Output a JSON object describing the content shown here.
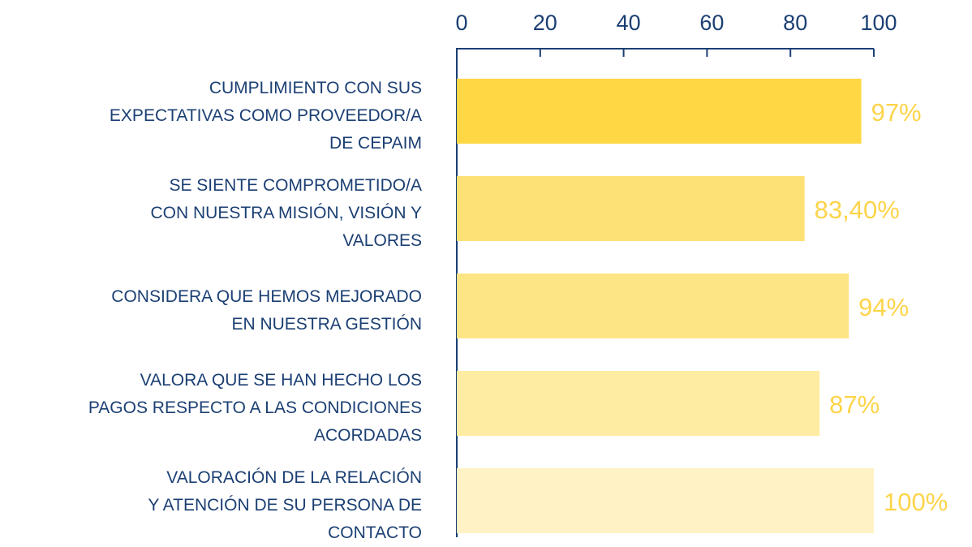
{
  "chart_data": {
    "type": "bar",
    "orientation": "horizontal",
    "categories": [
      "CUMPLIMIENTO CON SUS\nEXPECTATIVAS COMO PROVEEDOR/A\nDE CEPAIM",
      "SE SIENTE COMPROMETIDO/A\nCON NUESTRA MISIÓN, VISIÓN Y\nVALORES",
      "CONSIDERA QUE HEMOS MEJORADO\nEN NUESTRA GESTIÓN",
      "VALORA QUE SE HAN HECHO LOS\nPAGOS RESPECTO A LAS CONDICIONES\nACORDADAS",
      "VALORACIÓN DE LA RELACIÓN\nY ATENCIÓN DE SU PERSONA DE\nCONTACTO"
    ],
    "values": [
      97,
      83.4,
      94,
      87,
      100
    ],
    "value_labels": [
      "97%",
      "83,40%",
      "94%",
      "87%",
      "100%"
    ],
    "colors": [
      "#fdd844",
      "#fde175",
      "#fde586",
      "#feeca3",
      "#fff2c4"
    ],
    "xlim": [
      0,
      100
    ],
    "xticks": [
      0,
      20,
      40,
      60,
      80,
      100
    ],
    "grid": false
  }
}
